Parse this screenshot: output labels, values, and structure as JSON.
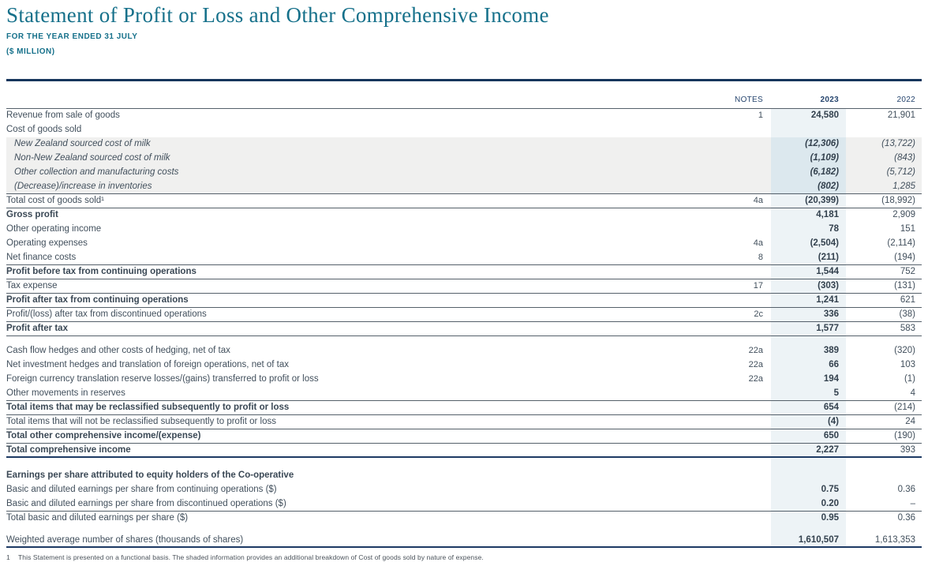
{
  "header": {
    "title": "Statement of Profit or Loss and Other Comprehensive Income",
    "subtitle1": "FOR THE YEAR ENDED 31 JULY",
    "subtitle2": "($ MILLION)"
  },
  "colors": {
    "accent_teal": "#15708a",
    "navy_rule": "#16365c",
    "header_text_navy": "#26456e",
    "body_text": "#414f5c",
    "col_2023_bg": "#edf3f6",
    "gray_band_bg": "#f0f0ef",
    "gray_band_2023_bg": "#dce8ee"
  },
  "table": {
    "columns": {
      "notes": "NOTES",
      "y2023": "2023",
      "y2022": "2022"
    },
    "rows": [
      {
        "label": "Revenue from sale of goods",
        "note": "1",
        "y2023": "24,580",
        "y2022": "21,901"
      },
      {
        "label": "Cost of goods sold"
      },
      {
        "label": "New Zealand sourced cost of milk",
        "y2023": "(12,306)",
        "y2022": "(13,722)",
        "italic": true,
        "band": true
      },
      {
        "label": "Non-New Zealand sourced cost of milk",
        "y2023": "(1,109)",
        "y2022": "(843)",
        "italic": true,
        "band": true
      },
      {
        "label": "Other collection and manufacturing costs",
        "y2023": "(6,182)",
        "y2022": "(5,712)",
        "italic": true,
        "band": true
      },
      {
        "label": "(Decrease)/increase in inventories",
        "y2023": "(802)",
        "y2022": "1,285",
        "italic": true,
        "band": true,
        "sep": "thin"
      },
      {
        "label": "Total cost of goods sold¹",
        "note": "4a",
        "y2023": "(20,399)",
        "y2022": "(18,992)",
        "sep": "thin"
      },
      {
        "label": "Gross profit",
        "y2023": "4,181",
        "y2022": "2,909",
        "bold": true
      },
      {
        "label": "Other operating income",
        "y2023": "78",
        "y2022": "151"
      },
      {
        "label": "Operating expenses",
        "note": "4a",
        "y2023": "(2,504)",
        "y2022": "(2,114)"
      },
      {
        "label": "Net finance costs",
        "note": "8",
        "y2023": "(211)",
        "y2022": "(194)",
        "sep": "thin"
      },
      {
        "label": "Profit before tax from continuing operations",
        "y2023": "1,544",
        "y2022": "752",
        "bold": true,
        "sep": "thin"
      },
      {
        "label": "Tax expense",
        "note": "17",
        "y2023": "(303)",
        "y2022": "(131)",
        "sep": "thin"
      },
      {
        "label": "Profit after tax from continuing operations",
        "y2023": "1,241",
        "y2022": "621",
        "bold": true,
        "sep": "thin"
      },
      {
        "label": "Profit/(loss) after tax from discontinued operations",
        "note": "2c",
        "y2023": "336",
        "y2022": "(38)",
        "sep": "thin"
      },
      {
        "label": "Profit after tax",
        "y2023": "1,577",
        "y2022": "583",
        "bold": true,
        "sep": "thin"
      },
      {
        "gap": 10
      },
      {
        "label": "Cash flow hedges and other costs of hedging, net of tax",
        "note": "22a",
        "y2023": "389",
        "y2022": "(320)"
      },
      {
        "label": "Net investment hedges and translation of foreign operations, net of tax",
        "note": "22a",
        "y2023": "66",
        "y2022": "103"
      },
      {
        "label": "Foreign currency translation reserve losses/(gains) transferred to profit or loss",
        "note": "22a",
        "y2023": "194",
        "y2022": "(1)"
      },
      {
        "label": "Other movements in reserves",
        "y2023": "5",
        "y2022": "4",
        "sep": "thin"
      },
      {
        "label": "Total items that may be reclassified subsequently to profit or loss",
        "y2023": "654",
        "y2022": "(214)",
        "bold": true,
        "sep": "thin"
      },
      {
        "label": "Total items that will not be reclassified subsequently to profit or loss",
        "y2023": "(4)",
        "y2022": "24",
        "sep": "thin"
      },
      {
        "label": "Total other comprehensive income/(expense)",
        "y2023": "650",
        "y2022": "(190)",
        "bold": true,
        "sep": "thin"
      },
      {
        "label": "Total comprehensive income",
        "y2023": "2,227",
        "y2022": "393",
        "bold": true,
        "sep": "navy"
      },
      {
        "gap": 14
      },
      {
        "label": "Earnings per share attributed to equity holders of the Co-operative",
        "bold": true
      },
      {
        "label": "Basic and diluted earnings per share from continuing operations ($)",
        "y2023": "0.75",
        "y2022": "0.36"
      },
      {
        "label": "Basic and diluted earnings per share from discontinued operations ($)",
        "y2023": "0.20",
        "y2022": "–",
        "sep": "thin"
      },
      {
        "label": "Total basic and diluted earnings per share ($)",
        "y2023": "0.95",
        "y2022": "0.36"
      },
      {
        "gap": 10
      },
      {
        "label": "Weighted average number of shares (thousands of shares)",
        "y2023": "1,610,507",
        "y2022": "1,613,353",
        "sep": "navy"
      }
    ]
  },
  "footnote": {
    "number": "1",
    "text": "This Statement is presented on a functional basis. The shaded information provides an additional breakdown of Cost of goods sold by nature of expense."
  }
}
